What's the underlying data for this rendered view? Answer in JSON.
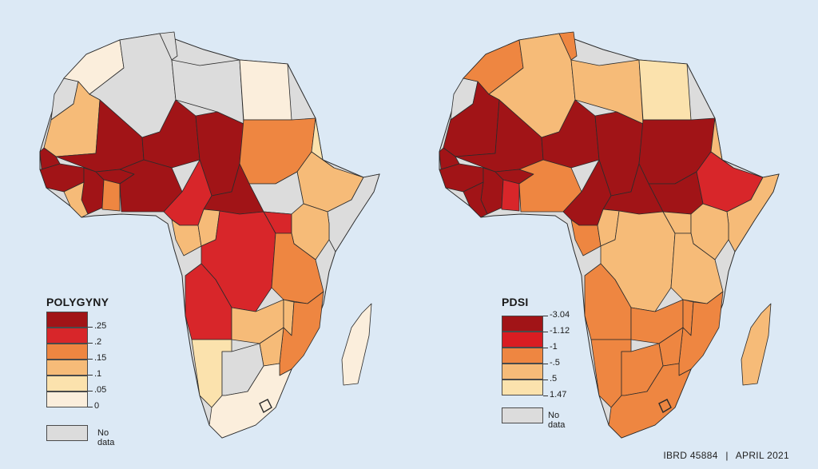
{
  "colors": {
    "c0": "#fbeedc",
    "c1": "#fbe2ad",
    "c2": "#f6bb78",
    "c3": "#ee8641",
    "c4": "#d8262a",
    "c5": "#a11417",
    "nodata": "#dcdcdc",
    "pdsi0": "#d91d22",
    "border": "#2b2b2b"
  },
  "maps": [
    {
      "id": "polygyny",
      "legend": {
        "title": "POLYGYNY",
        "breaks": [
          ".25",
          ".2",
          ".15",
          ".1",
          ".05",
          "0"
        ],
        "swatches": [
          "c5",
          "c4",
          "c3",
          "c2",
          "c1",
          "c0"
        ],
        "nodata_label": "No data"
      },
      "regions": {
        "morocco": "c0",
        "western_sahara": "nodata",
        "algeria": "nodata",
        "tunisia": "nodata",
        "libya": "nodata",
        "egypt": "c0",
        "mauritania": "c2",
        "mali": "c5",
        "niger": "c5",
        "chad": "c5",
        "sudan": "c3",
        "south_sudan": "nodata",
        "ethiopia": "c2",
        "eritrea": "c1",
        "somalia": "nodata",
        "senegal": "c5",
        "guinea": "c5",
        "ivory_coast": "c5",
        "liberia": "c2",
        "ghana": "c3",
        "burkina_faso": "c5",
        "nigeria": "c5",
        "cameroon": "c4",
        "car": "c5",
        "gabon": "c2",
        "congo": "c2",
        "drc": "c4",
        "uganda": "c4",
        "kenya": "c2",
        "tanzania": "c3",
        "angola": "c4",
        "zambia": "c2",
        "malawi": "c2",
        "mozambique": "c3",
        "zimbabwe": "c2",
        "namibia": "c1",
        "botswana": "nodata",
        "south_africa": "c0",
        "madagascar": "c0"
      }
    },
    {
      "id": "pdsi",
      "legend": {
        "title": "PDSI",
        "breaks": [
          "-3.04",
          "-1.12",
          "-1",
          "-.5",
          ".5",
          "1.47"
        ],
        "swatches": [
          "c5",
          "pdsi0",
          "c3",
          "c2",
          "c1"
        ],
        "nodata_label": "No data"
      },
      "regions": {
        "morocco": "c3",
        "western_sahara": "nodata",
        "algeria": "c2",
        "tunisia": "c3",
        "libya": "c2",
        "egypt": "c1",
        "mauritania": "c5",
        "mali": "c5",
        "niger": "c5",
        "chad": "c5",
        "sudan": "c5",
        "south_sudan": "c5",
        "ethiopia": "c4",
        "eritrea": "c2",
        "somalia": "c2",
        "senegal": "c5",
        "guinea": "c5",
        "ivory_coast": "c5",
        "liberia": "c5",
        "ghana": "c4",
        "burkina_faso": "c5",
        "nigeria": "c3",
        "cameroon": "c5",
        "car": "c5",
        "gabon": "c3",
        "congo": "c2",
        "drc": "c2",
        "uganda": "c2",
        "kenya": "c2",
        "tanzania": "c2",
        "angola": "c3",
        "zambia": "c3",
        "malawi": "c3",
        "mozambique": "c3",
        "zimbabwe": "c3",
        "namibia": "c3",
        "botswana": "c3",
        "south_africa": "c3",
        "madagascar": "c2"
      }
    }
  ],
  "footer": {
    "id_text": "IBRD 45884",
    "separator": "|",
    "date_text": "APRIL 2021"
  }
}
